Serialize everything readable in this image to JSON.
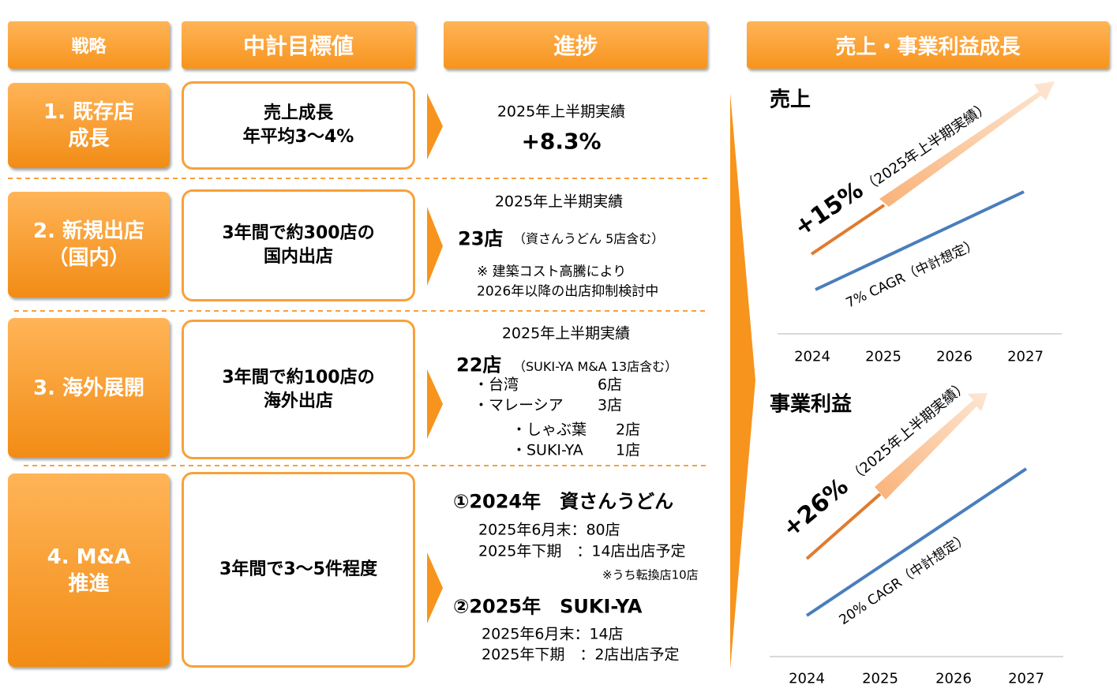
{
  "headers": {
    "strategy": "戦略",
    "target": "中計目標値",
    "progress": "進捗",
    "growth": "売上・事業利益成長"
  },
  "rows": [
    {
      "strategy": [
        "1. 既存店",
        "成長"
      ],
      "target": [
        "売上成長",
        "年平均3～4%"
      ],
      "progress": [
        "2025年上半期実績",
        "+8.3%"
      ]
    },
    {
      "strategy": [
        "2. 新規出店",
        "（国内）"
      ],
      "target": [
        "3年間で約300店の",
        "国内出店"
      ],
      "progress": [
        "2025年上半期実績",
        "23店",
        "（資さんうどん 5店含む）",
        "※ 建築コスト高騰により",
        "2026年以降の出店抑制検討中"
      ]
    },
    {
      "strategy": [
        "3. 海外展開"
      ],
      "target": [
        "3年間で約100店の",
        "海外出店"
      ],
      "progress": [
        "2025年上半期実績",
        "22店",
        "（SUKI-YA M&A 13店含む）",
        "・台湾",
        "6店",
        "・マレーシア",
        "3店",
        "・しゃぶ葉",
        "2店",
        "・SUKI-YA",
        "1店"
      ]
    },
    {
      "strategy": [
        "4. M&A",
        "推進"
      ],
      "target": [
        "3年間で3～5件程度"
      ],
      "progress": [
        "①2024年　資さんうどん",
        "2025年6月末：80店",
        "2025年下期　：14店出店予定",
        "※うち転換店10店",
        "②2025年　SUKI-YA",
        "2025年6月末：14店",
        "2025年下期　：2店出店予定"
      ]
    }
  ],
  "charts": [
    {
      "title": "売上",
      "actual": "+15%",
      "actual_note": "（2025年上半期実績）",
      "plan": "7% CAGR（中計想定）",
      "years": [
        "2024",
        "2025",
        "2026",
        "2027"
      ]
    },
    {
      "title": "事業利益",
      "actual": "+26%",
      "actual_note": "（2025年上半期実績）",
      "plan": "20% CAGR（中計想定）",
      "years": [
        "2024",
        "2025",
        "2026",
        "2027"
      ]
    }
  ]
}
